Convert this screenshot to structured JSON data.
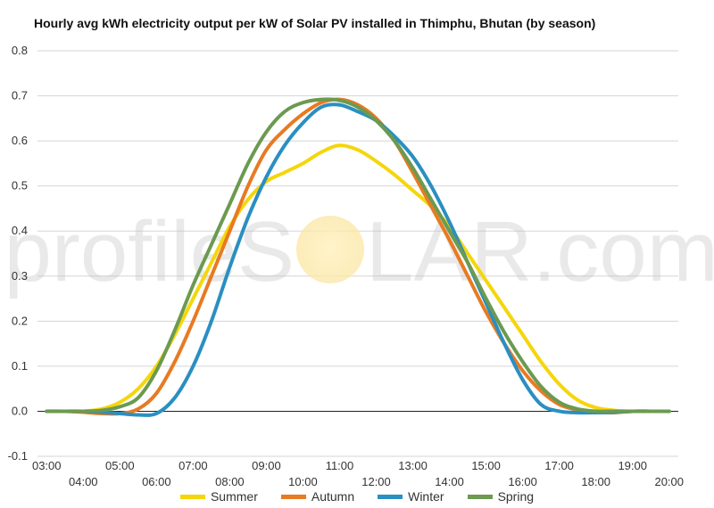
{
  "title": "Hourly avg kWh electricity output per kW of Solar PV installed in Thimphu, Bhutan (by season)",
  "watermark": {
    "text_left": "profileS",
    "text_right": "LAR.com"
  },
  "chart_data": {
    "type": "line",
    "title": "Hourly avg kWh electricity output per kW of Solar PV installed in Thimphu, Bhutan (by season)",
    "xlabel": "",
    "ylabel": "",
    "ylim": [
      -0.1,
      0.8
    ],
    "yticks": [
      -0.1,
      0.0,
      0.1,
      0.2,
      0.3,
      0.4,
      0.5,
      0.6,
      0.7,
      0.8
    ],
    "ytick_labels": [
      "-0.1",
      "0.0",
      "0.1",
      "0.2",
      "0.3",
      "0.4",
      "0.5",
      "0.6",
      "0.7",
      "0.8"
    ],
    "xlim": [
      2.75,
      20.25
    ],
    "xticks_upper": [
      "03:00",
      "05:00",
      "07:00",
      "09:00",
      "11:00",
      "13:00",
      "15:00",
      "17:00",
      "19:00"
    ],
    "xticks_lower": [
      "04:00",
      "06:00",
      "08:00",
      "10:00",
      "12:00",
      "14:00",
      "16:00",
      "18:00",
      "20:00"
    ],
    "x": [
      3.0,
      3.5,
      4.0,
      4.5,
      5.0,
      5.5,
      6.0,
      6.5,
      7.0,
      7.5,
      8.0,
      8.5,
      9.0,
      9.5,
      10.0,
      10.5,
      11.0,
      11.5,
      12.0,
      12.5,
      13.0,
      13.5,
      14.0,
      14.5,
      15.0,
      15.5,
      16.0,
      16.5,
      17.0,
      17.5,
      18.0,
      18.5,
      19.0,
      19.5,
      20.0
    ],
    "grid": true,
    "legend_position": "bottom",
    "series": [
      {
        "name": "Summer",
        "color": "#f5d60a",
        "values": [
          0.0,
          0.0,
          0.0,
          0.005,
          0.02,
          0.05,
          0.1,
          0.17,
          0.25,
          0.33,
          0.41,
          0.47,
          0.51,
          0.53,
          0.55,
          0.575,
          0.59,
          0.58,
          0.555,
          0.525,
          0.49,
          0.455,
          0.41,
          0.35,
          0.29,
          0.23,
          0.17,
          0.11,
          0.06,
          0.025,
          0.008,
          0.002,
          0.0,
          0.0,
          0.0
        ]
      },
      {
        "name": "Autumn",
        "color": "#e87a22",
        "values": [
          0.0,
          0.0,
          -0.002,
          -0.005,
          -0.005,
          0.005,
          0.04,
          0.11,
          0.2,
          0.3,
          0.4,
          0.5,
          0.58,
          0.625,
          0.66,
          0.685,
          0.692,
          0.68,
          0.65,
          0.6,
          0.53,
          0.455,
          0.38,
          0.3,
          0.22,
          0.15,
          0.09,
          0.045,
          0.015,
          0.003,
          -0.002,
          -0.003,
          0.0,
          0.0,
          0.0
        ]
      },
      {
        "name": "Winter",
        "color": "#2a8fc1",
        "values": [
          0.0,
          0.0,
          0.0,
          -0.002,
          -0.005,
          -0.008,
          -0.005,
          0.03,
          0.1,
          0.2,
          0.32,
          0.43,
          0.52,
          0.59,
          0.64,
          0.675,
          0.68,
          0.665,
          0.645,
          0.61,
          0.565,
          0.5,
          0.42,
          0.33,
          0.24,
          0.15,
          0.07,
          0.015,
          0.0,
          -0.003,
          -0.003,
          -0.002,
          0.0,
          0.0,
          0.0
        ]
      },
      {
        "name": "Spring",
        "color": "#6b9a50",
        "values": [
          0.0,
          0.0,
          0.0,
          0.002,
          0.01,
          0.03,
          0.09,
          0.18,
          0.28,
          0.37,
          0.46,
          0.55,
          0.62,
          0.665,
          0.685,
          0.692,
          0.69,
          0.675,
          0.645,
          0.6,
          0.54,
          0.47,
          0.4,
          0.33,
          0.25,
          0.175,
          0.11,
          0.055,
          0.02,
          0.005,
          0.0,
          0.0,
          0.0,
          0.0,
          0.0
        ]
      }
    ]
  }
}
